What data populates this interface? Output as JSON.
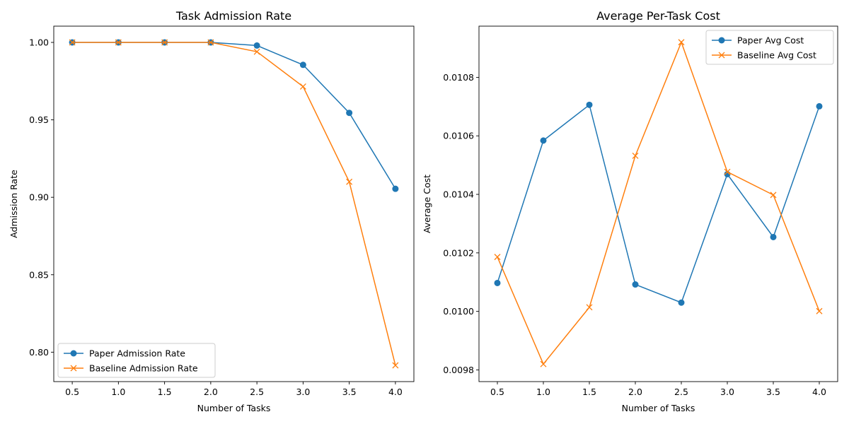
{
  "colors": {
    "paper": "#1f77b4",
    "baseline": "#ff7f0e"
  },
  "chart_data": [
    {
      "type": "line",
      "title": "Task Admission Rate",
      "xlabel": "Number of Tasks",
      "ylabel": "Admission Rate",
      "x": [
        0.5,
        1.0,
        1.5,
        2.0,
        2.5,
        3.0,
        3.5,
        4.0
      ],
      "xlim": [
        0.3,
        4.2
      ],
      "ylim": [
        0.781,
        1.0105
      ],
      "xticks": [
        "0.5",
        "1.0",
        "1.5",
        "2.0",
        "2.5",
        "3.0",
        "3.5",
        "4.0"
      ],
      "yticks": [
        "0.80",
        "0.85",
        "0.90",
        "0.95",
        "1.00"
      ],
      "legend_position": "lower-left",
      "grid": false,
      "series": [
        {
          "name": "Paper Admission Rate",
          "marker": "circle",
          "color": "#1f77b4",
          "values": [
            1.0,
            1.0,
            1.0,
            1.0,
            0.998,
            0.9855,
            0.9545,
            0.9055
          ]
        },
        {
          "name": "Baseline Admission Rate",
          "marker": "x",
          "color": "#ff7f0e",
          "values": [
            1.0,
            1.0,
            1.0,
            1.0,
            0.994,
            0.9715,
            0.91,
            0.7915
          ]
        }
      ]
    },
    {
      "type": "line",
      "title": "Average Per-Task Cost",
      "xlabel": "Number of Tasks",
      "ylabel": "Average Cost",
      "x": [
        0.5,
        1.0,
        1.5,
        2.0,
        2.5,
        3.0,
        3.5,
        4.0
      ],
      "xlim": [
        0.3,
        4.2
      ],
      "ylim": [
        0.00976,
        0.010975
      ],
      "xticks": [
        "0.5",
        "1.0",
        "1.5",
        "2.0",
        "2.5",
        "3.0",
        "3.5",
        "4.0"
      ],
      "yticks": [
        "0.0098",
        "0.0100",
        "0.0102",
        "0.0104",
        "0.0106",
        "0.0108"
      ],
      "legend_position": "upper-right",
      "grid": false,
      "series": [
        {
          "name": "Paper Avg Cost",
          "marker": "circle",
          "color": "#1f77b4",
          "values": [
            0.010097,
            0.010584,
            0.010706,
            0.010092,
            0.01003,
            0.010469,
            0.010254,
            0.010701
          ]
        },
        {
          "name": "Baseline Avg Cost",
          "marker": "x",
          "color": "#ff7f0e",
          "values": [
            0.010186,
            0.00982,
            0.010014,
            0.010532,
            0.01092,
            0.010477,
            0.010398,
            0.010001
          ]
        }
      ]
    }
  ]
}
